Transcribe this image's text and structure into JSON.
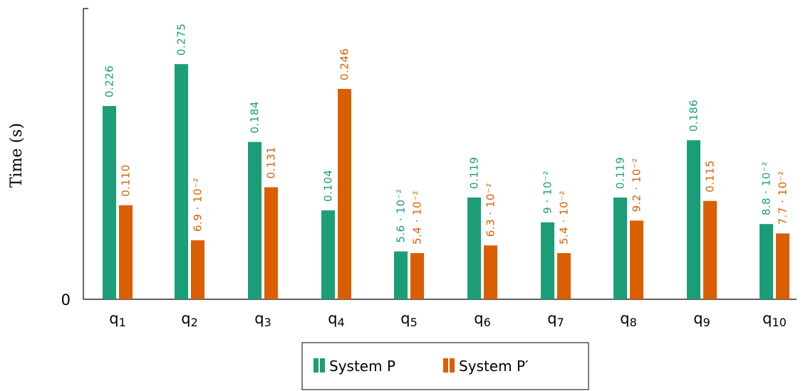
{
  "chart_data": {
    "type": "bar",
    "ylabel": "Time (s)",
    "y_tick_labels": [
      "0"
    ],
    "ylim": [
      0,
      0.34
    ],
    "categories": [
      "q1",
      "q2",
      "q3",
      "q4",
      "q5",
      "q6",
      "q7",
      "q8",
      "q9",
      "q10"
    ],
    "series": [
      {
        "name": "System P",
        "color": "#1b9e77",
        "values": [
          0.226,
          0.275,
          0.184,
          0.104,
          0.056,
          0.119,
          0.09,
          0.119,
          0.186,
          0.088
        ],
        "labels": [
          "0.226",
          "0.275",
          "0.184",
          "0.104",
          "5.6 · 10⁻²",
          "0.119",
          "9 · 10⁻²",
          "0.119",
          "0.186",
          "8.8 · 10⁻²"
        ]
      },
      {
        "name": "System P′",
        "color": "#d95f02",
        "values": [
          0.11,
          0.069,
          0.131,
          0.246,
          0.054,
          0.063,
          0.054,
          0.092,
          0.115,
          0.077
        ],
        "labels": [
          "0.110",
          "6.9 · 10⁻²",
          "0.131",
          "0.246",
          "5.4 · 10⁻²",
          "6.3 · 10⁻²",
          "5.4 · 10⁻²",
          "9.2 · 10⁻²",
          "0.115",
          "7.7 · 10⁻²"
        ]
      }
    ],
    "legend": "bottom",
    "grid": false
  }
}
